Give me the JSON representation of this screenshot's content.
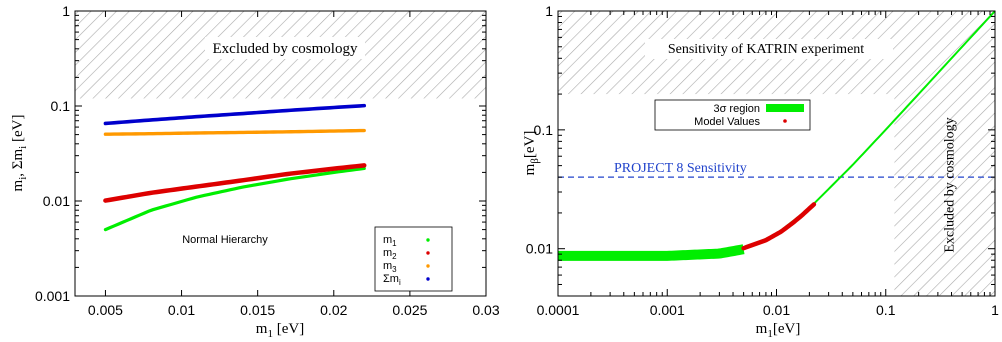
{
  "colors": {
    "m1": "#00ee00",
    "m2": "#dd0000",
    "m3": "#ff9900",
    "sum": "#0000cc",
    "band": "#00ee00",
    "model": "#dd0000",
    "project8": "#2244cc",
    "hatch": "#aaaaaa"
  },
  "chart_data": [
    {
      "type": "scatter",
      "xlabel_main": "m",
      "xlabel_sub": "1",
      "xlabel_unit": " [eV]",
      "ylabel_parts": [
        "m",
        "i",
        ", Σm",
        "i",
        " [eV]"
      ],
      "xscale": "linear",
      "yscale": "log",
      "xlim": [
        0.003,
        0.03
      ],
      "ylim": [
        0.001,
        1
      ],
      "xticks": [
        0.005,
        0.01,
        0.015,
        0.02,
        0.025,
        0.03
      ],
      "xtick_labels": [
        "0.005",
        "0.01",
        "0.015",
        "0.02",
        "0.025",
        "0.03"
      ],
      "yticks": [
        0.001,
        0.01,
        0.1,
        1
      ],
      "ytick_labels": [
        "0.001",
        "0.01",
        "0.1",
        "1"
      ],
      "excluded_region": {
        "y_from": 0.12,
        "y_to": 1
      },
      "excluded_text": "Excluded by cosmology",
      "annotation": "Normal Hierarchy",
      "legend_position": "right",
      "series": [
        {
          "name": "m",
          "sub": "1",
          "x": [
            0.005,
            0.008,
            0.011,
            0.014,
            0.017,
            0.02,
            0.022
          ],
          "y": [
            0.005,
            0.008,
            0.011,
            0.014,
            0.017,
            0.02,
            0.022
          ]
        },
        {
          "name": "m",
          "sub": "2",
          "x": [
            0.005,
            0.008,
            0.011,
            0.014,
            0.017,
            0.02,
            0.022
          ],
          "y": [
            0.0101,
            0.0122,
            0.0142,
            0.0165,
            0.0193,
            0.0219,
            0.0237
          ]
        },
        {
          "name": "m",
          "sub": "3",
          "x": [
            0.005,
            0.008,
            0.011,
            0.014,
            0.017,
            0.02,
            0.022
          ],
          "y": [
            0.0505,
            0.0511,
            0.052,
            0.0527,
            0.0535,
            0.0545,
            0.0552
          ]
        },
        {
          "name": "Σm",
          "sub": "i",
          "x": [
            0.005,
            0.008,
            0.011,
            0.014,
            0.017,
            0.02,
            0.022
          ],
          "y": [
            0.0655,
            0.0713,
            0.0772,
            0.0832,
            0.0898,
            0.0964,
            0.1009
          ]
        }
      ]
    },
    {
      "type": "line",
      "xlabel_main": "m",
      "xlabel_sub": "1",
      "xlabel_unit": "[eV]",
      "ylabel_main": "m",
      "ylabel_sub": "β",
      "ylabel_unit": "[eV]",
      "xscale": "log",
      "yscale": "log",
      "xlim": [
        0.0001,
        1
      ],
      "ylim": [
        0.004,
        1
      ],
      "xticks": [
        0.0001,
        0.001,
        0.01,
        0.1,
        1
      ],
      "xtick_labels": [
        "0.0001",
        "0.001",
        "0.01",
        "0.1",
        "1"
      ],
      "yticks": [
        0.01,
        0.1,
        1
      ],
      "ytick_labels": [
        "0.01",
        "0.1",
        "1"
      ],
      "excluded_top": {
        "y_from": 0.2,
        "y_to": 1
      },
      "excluded_top_text": "Sensitivity of KATRIN experiment",
      "excluded_right": {
        "x_from": 0.12,
        "x_to": 1
      },
      "excluded_right_text": "Excluded by cosmology",
      "project8": {
        "y": 0.04,
        "label": "PROJECT 8 Sensitivity"
      },
      "legend_position": "top-left",
      "series": [
        {
          "name": "3σ region",
          "x": [
            0.0001,
            0.001,
            0.003,
            0.005,
            0.01,
            0.02,
            0.05,
            0.1,
            0.2,
            0.5,
            1
          ],
          "y": [
            0.0087,
            0.0087,
            0.0091,
            0.0099,
            0.0133,
            0.0219,
            0.0509,
            0.1004,
            0.2002,
            0.5001,
            1.0
          ]
        },
        {
          "name": "Model Values",
          "x": [
            0.005,
            0.008,
            0.011,
            0.014,
            0.017,
            0.02,
            0.022
          ],
          "y": [
            0.0101,
            0.0118,
            0.0139,
            0.0164,
            0.019,
            0.0218,
            0.0236
          ]
        }
      ]
    }
  ]
}
